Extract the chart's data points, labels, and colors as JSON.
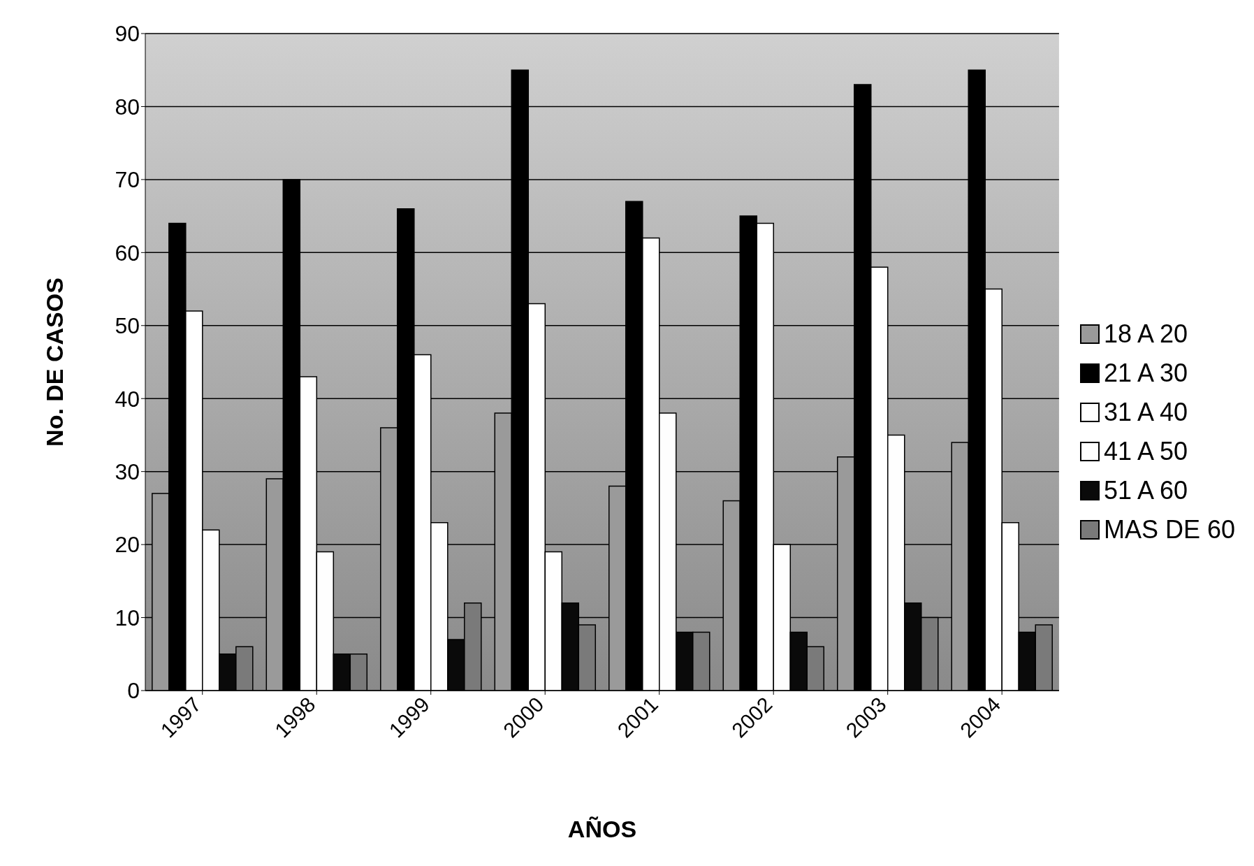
{
  "chart_data": {
    "type": "bar",
    "xlabel": "AÑOS",
    "ylabel": "No. DE CASOS",
    "categories": [
      "1997",
      "1998",
      "1999",
      "2000",
      "2001",
      "2002",
      "2003",
      "2004"
    ],
    "series": [
      {
        "name": "18 A 20",
        "color": "#9a9a9a",
        "values": [
          27,
          29,
          36,
          38,
          28,
          26,
          32,
          34
        ]
      },
      {
        "name": "21 A 30",
        "color": "#000000",
        "values": [
          64,
          70,
          66,
          85,
          67,
          65,
          83,
          85
        ]
      },
      {
        "name": "31 A 40",
        "color": "#ffffff",
        "values": [
          52,
          43,
          46,
          53,
          62,
          64,
          58,
          55
        ]
      },
      {
        "name": "41 A 50",
        "color": "#fefefe",
        "values": [
          22,
          19,
          23,
          19,
          38,
          20,
          35,
          23
        ]
      },
      {
        "name": "51 A 60",
        "color": "#0a0a0a",
        "values": [
          5,
          5,
          7,
          12,
          8,
          8,
          12,
          8
        ]
      },
      {
        "name": "MAS DE 60",
        "color": "#7a7a7a",
        "values": [
          6,
          5,
          12,
          9,
          8,
          6,
          10,
          9
        ]
      }
    ],
    "ylim": [
      0,
      90
    ],
    "yticks": [
      0,
      10,
      20,
      30,
      40,
      50,
      60,
      70,
      80,
      90
    ],
    "grid": "y",
    "legend": "right"
  }
}
